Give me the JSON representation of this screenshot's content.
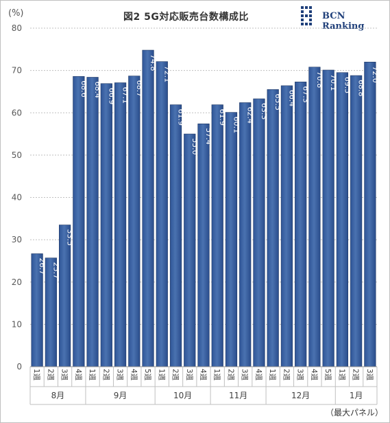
{
  "chart_data": {
    "type": "bar",
    "title": "図2  5G対応販売台数構成比",
    "ylabel": "(%)",
    "ylim": [
      0,
      80
    ],
    "yticks": [
      0,
      10,
      20,
      30,
      40,
      50,
      60,
      70,
      80
    ],
    "grid": true,
    "categories": [
      "1週",
      "2週",
      "3週",
      "4週",
      "1週",
      "2週",
      "3週",
      "4週",
      "5週",
      "1週",
      "2週",
      "3週",
      "4週",
      "1週",
      "2週",
      "3週",
      "4週",
      "1週",
      "2週",
      "3週",
      "4週",
      "5週",
      "1週",
      "2週",
      "3週"
    ],
    "category_tick_labels": [
      "1週",
      "2週",
      "3週",
      "4週"
    ],
    "months": [
      {
        "label": "8月",
        "count": 4
      },
      {
        "label": "9月",
        "count": 5
      },
      {
        "label": "10月",
        "count": 4
      },
      {
        "label": "11月",
        "count": 4
      },
      {
        "label": "12月",
        "count": 5
      },
      {
        "label": "1月",
        "count": 3
      }
    ],
    "values": [
      26.7,
      25.7,
      33.5,
      68.6,
      68.4,
      66.9,
      67.1,
      68.7,
      74.8,
      72.1,
      61.9,
      55.0,
      57.4,
      61.9,
      60.1,
      62.4,
      63.3,
      65.5,
      66.4,
      67.3,
      70.8,
      70.1,
      69.5,
      68.8,
      72.0
    ],
    "value_labels": [
      "26.7",
      "25.7",
      "33.5",
      "68.6",
      "68.4",
      "66.9",
      "67.1",
      "68.7",
      "74.8",
      "72.1",
      "61.9",
      "55.0",
      "57.4",
      "61.9",
      "60.1",
      "62.4",
      "63.3",
      "65.5",
      "66.4",
      "67.3",
      "70.8",
      "70.1",
      "69.5",
      "68.8",
      "72.0"
    ],
    "bar_color": "#4a72b0"
  },
  "header": {
    "brand": "BCN Ranking",
    "logo_icon": "bcn-logo-icon"
  },
  "footnote": "（最大パネル）"
}
